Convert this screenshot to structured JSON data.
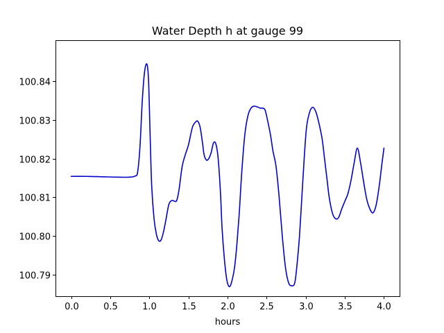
{
  "chart_data": {
    "type": "line",
    "title": "Water Depth h at gauge 99",
    "xlabel": "hours",
    "ylabel": "",
    "xlim": [
      -0.2,
      4.2
    ],
    "ylim": [
      100.7845,
      100.8505
    ],
    "grid": false,
    "x_ticks": [
      0.0,
      0.5,
      1.0,
      1.5,
      2.0,
      2.5,
      3.0,
      3.5,
      4.0
    ],
    "x_tick_labels": [
      "0.0",
      "0.5",
      "1.0",
      "1.5",
      "2.0",
      "2.5",
      "3.0",
      "3.5",
      "4.0"
    ],
    "y_ticks": [
      100.79,
      100.8,
      100.81,
      100.82,
      100.83,
      100.84
    ],
    "y_tick_labels": [
      "100.79",
      "100.80",
      "100.81",
      "100.82",
      "100.83",
      "100.84"
    ],
    "series": [
      {
        "color": "#0000cc",
        "x": [
          0.0,
          0.2,
          0.4,
          0.6,
          0.75,
          0.82,
          0.85,
          0.88,
          0.91,
          0.94,
          0.97,
          0.99,
          1.01,
          1.03,
          1.06,
          1.09,
          1.12,
          1.15,
          1.18,
          1.21,
          1.25,
          1.29,
          1.32,
          1.35,
          1.38,
          1.42,
          1.46,
          1.5,
          1.55,
          1.59,
          1.62,
          1.65,
          1.68,
          1.7,
          1.73,
          1.76,
          1.79,
          1.82,
          1.85,
          1.88,
          1.91,
          1.93,
          1.96,
          1.99,
          2.02,
          2.05,
          2.09,
          2.12,
          2.15,
          2.18,
          2.22,
          2.26,
          2.3,
          2.34,
          2.38,
          2.42,
          2.45,
          2.48,
          2.51,
          2.55,
          2.58,
          2.62,
          2.66,
          2.7,
          2.74,
          2.78,
          2.82,
          2.86,
          2.89,
          2.92,
          2.95,
          2.98,
          3.01,
          3.05,
          3.09,
          3.13,
          3.17,
          3.21,
          3.24,
          3.27,
          3.3,
          3.34,
          3.38,
          3.42,
          3.46,
          3.5,
          3.54,
          3.58,
          3.62,
          3.66,
          3.7,
          3.74,
          3.78,
          3.82,
          3.86,
          3.9,
          3.94,
          3.97,
          4.0
        ],
        "y": [
          100.8154,
          100.8154,
          100.8153,
          100.8152,
          100.8152,
          100.8155,
          100.8165,
          100.823,
          100.835,
          100.8425,
          100.8443,
          100.84,
          100.826,
          100.813,
          100.8045,
          100.8005,
          100.7988,
          100.799,
          100.801,
          100.804,
          100.8082,
          100.8092,
          100.809,
          100.8092,
          100.812,
          100.818,
          100.821,
          100.8235,
          100.828,
          100.8294,
          100.8296,
          100.828,
          100.824,
          100.821,
          100.8196,
          100.82,
          100.8215,
          100.824,
          100.8238,
          100.82,
          100.811,
          100.802,
          100.794,
          100.7888,
          100.787,
          100.788,
          100.792,
          100.798,
          100.806,
          100.816,
          100.826,
          100.831,
          100.833,
          100.8335,
          100.8333,
          100.833,
          100.833,
          100.8325,
          100.83,
          100.826,
          100.822,
          100.818,
          100.81,
          100.8,
          100.792,
          100.788,
          100.7872,
          100.788,
          100.793,
          100.8,
          100.81,
          100.82,
          100.828,
          100.832,
          100.8332,
          100.832,
          100.829,
          100.825,
          100.82,
          100.815,
          100.81,
          100.806,
          100.8045,
          100.8048,
          100.807,
          100.809,
          100.811,
          100.8145,
          100.819,
          100.8227,
          100.819,
          100.814,
          100.8095,
          100.807,
          100.806,
          100.808,
          100.813,
          100.818,
          100.8227
        ]
      }
    ]
  }
}
